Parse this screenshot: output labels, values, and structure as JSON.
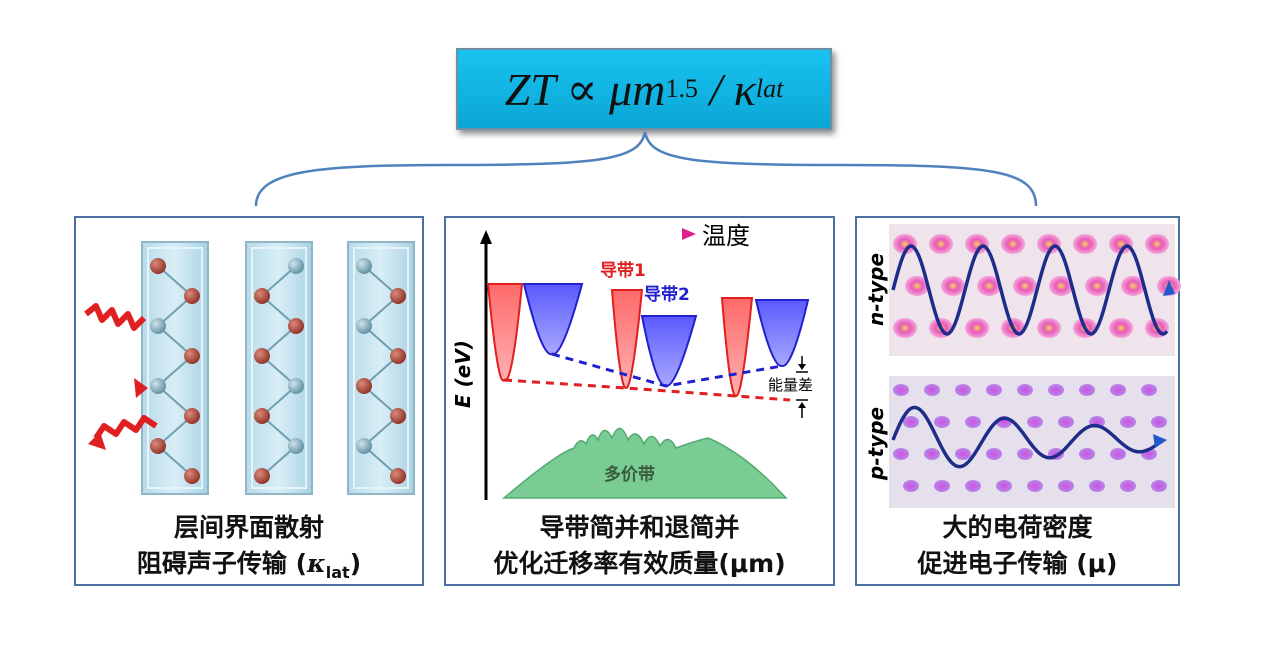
{
  "formula": {
    "lhs": "ZT ∝ μm",
    "exponent": "1.5",
    "separator": " / κ",
    "subscript": "lat"
  },
  "panel_left": {
    "caption_line1": "层间界面散射",
    "caption_line2_text": "阻碍声子传输 (",
    "caption_line2_symbol": "κ",
    "caption_line2_sub": "lat",
    "caption_line2_end": ")"
  },
  "panel_middle": {
    "temperature_label": "温度",
    "band1_label": "导带1",
    "band2_label": "导带2",
    "energy_gap_label": "能量差",
    "valence_label": "多价带",
    "y_axis_label": "E (eV)",
    "caption_line1": "导带简并和退简并",
    "caption_line2": "优化迁移率有效质量(μm)"
  },
  "panel_right": {
    "n_type_label": "n-type",
    "p_type_label": "p-type",
    "caption_line1": "大的电荷密度",
    "caption_line2": "促进电子传输 (μ)"
  },
  "colors": {
    "red_band": "#ff6a6a",
    "blue_band": "#6a6aff",
    "valence": "#6fc98f",
    "bracket": "#4f81bd"
  }
}
